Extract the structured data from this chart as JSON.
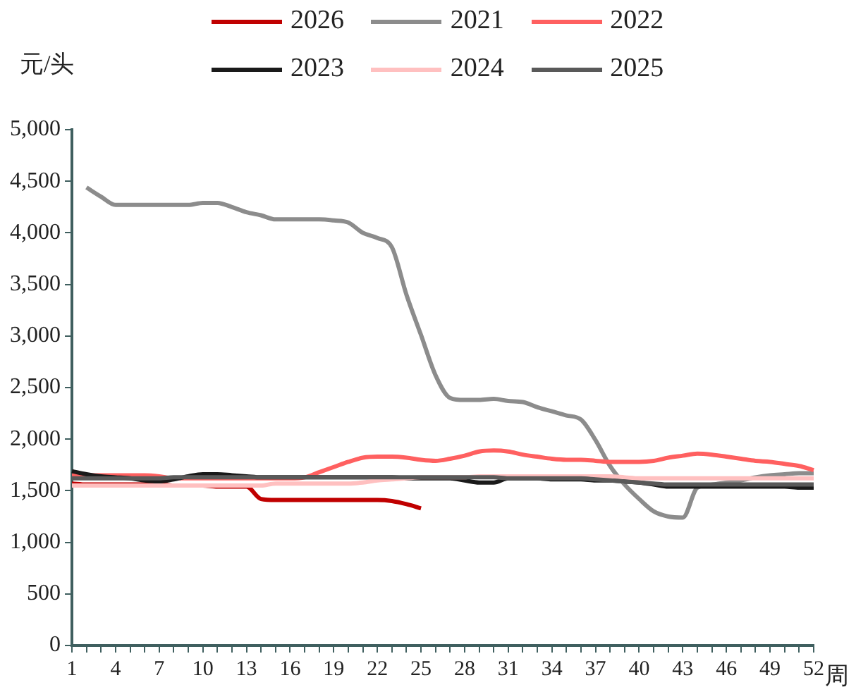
{
  "chart_data": {
    "type": "line",
    "ylabel": "元/头",
    "xlabel": "周",
    "categories": [
      "1",
      null,
      null,
      "4",
      null,
      null,
      "7",
      null,
      null,
      "10",
      null,
      null,
      "13",
      null,
      null,
      "16",
      null,
      null,
      "19",
      null,
      null,
      "22",
      null,
      null,
      "25",
      null,
      null,
      "28",
      null,
      null,
      "31",
      null,
      null,
      "34",
      null,
      null,
      "37",
      null,
      null,
      "40",
      null,
      null,
      "43",
      null,
      null,
      "46",
      null,
      null,
      "49",
      null,
      null,
      "52"
    ],
    "ylim": [
      0,
      5000
    ],
    "yticks": [
      {
        "value": 0,
        "label": "0"
      },
      {
        "value": 500,
        "label": "500"
      },
      {
        "value": 1000,
        "label": "1,000"
      },
      {
        "value": 1500,
        "label": "1,500"
      },
      {
        "value": 2000,
        "label": "2,000"
      },
      {
        "value": 2500,
        "label": "2,500"
      },
      {
        "value": 3000,
        "label": "3,000"
      },
      {
        "value": 3500,
        "label": "3,500"
      },
      {
        "value": 4000,
        "label": "4,000"
      },
      {
        "value": 4500,
        "label": "4,500"
      },
      {
        "value": 5000,
        "label": "5,000"
      }
    ],
    "grid": false,
    "legend": "top",
    "marker": "none",
    "line_style": "solid",
    "series": [
      {
        "name": "2026",
        "color": "#c00000",
        "values": [
          1570,
          1560,
          1560,
          1560,
          1560,
          1560,
          1560,
          1550,
          1550,
          1550,
          1540,
          1540,
          1540,
          1420,
          1410,
          1410,
          1410,
          1410,
          1410,
          1410,
          1410,
          1410,
          1400,
          1370,
          1330,
          null,
          null,
          null,
          null,
          null,
          null,
          null,
          null,
          null,
          null,
          null,
          null,
          null,
          null,
          null,
          null,
          null,
          null,
          null,
          null,
          null,
          null,
          null,
          null,
          null,
          null,
          null
        ]
      },
      {
        "name": "2021",
        "color": "#8c8c8c",
        "values": [
          null,
          4440,
          4350,
          4270,
          4270,
          4270,
          4270,
          4270,
          4270,
          4290,
          4290,
          4250,
          4200,
          4170,
          4130,
          4130,
          4130,
          4130,
          4120,
          4100,
          4000,
          3950,
          3860,
          3400,
          3010,
          2620,
          2400,
          2380,
          2380,
          2390,
          2370,
          2360,
          2310,
          2270,
          2230,
          2190,
          1990,
          1740,
          1560,
          1420,
          1300,
          1250,
          1240,
          1530,
          1560,
          1580,
          1600,
          1630,
          1650,
          1660,
          1670,
          1670
        ]
      },
      {
        "name": "2022",
        "color": "#ff6060",
        "values": [
          1650,
          1650,
          1650,
          1650,
          1650,
          1650,
          1640,
          1620,
          1620,
          1620,
          1620,
          1620,
          1620,
          1620,
          1620,
          1620,
          1630,
          1680,
          1730,
          1780,
          1820,
          1830,
          1830,
          1820,
          1800,
          1790,
          1810,
          1840,
          1880,
          1890,
          1880,
          1850,
          1830,
          1810,
          1800,
          1800,
          1790,
          1780,
          1780,
          1780,
          1790,
          1820,
          1840,
          1860,
          1850,
          1830,
          1810,
          1790,
          1780,
          1760,
          1740,
          1700
        ]
      },
      {
        "name": "2023",
        "color": "#1a1a1a",
        "values": [
          1690,
          1660,
          1640,
          1630,
          1620,
          1600,
          1590,
          1610,
          1640,
          1660,
          1660,
          1650,
          1640,
          1630,
          1630,
          1630,
          1630,
          1630,
          1630,
          1630,
          1630,
          1630,
          1630,
          1620,
          1620,
          1620,
          1620,
          1600,
          1580,
          1580,
          1620,
          1620,
          1620,
          1610,
          1610,
          1610,
          1600,
          1600,
          1590,
          1580,
          1560,
          1540,
          1540,
          1540,
          1540,
          1540,
          1540,
          1540,
          1540,
          1540,
          1530,
          1530
        ]
      },
      {
        "name": "2024",
        "color": "#ffc0c0",
        "values": [
          1550,
          1550,
          1550,
          1550,
          1550,
          1550,
          1550,
          1550,
          1550,
          1550,
          1550,
          1550,
          1550,
          1550,
          1570,
          1570,
          1570,
          1570,
          1570,
          1570,
          1580,
          1600,
          1610,
          1620,
          1630,
          1630,
          1630,
          1630,
          1640,
          1640,
          1640,
          1640,
          1640,
          1640,
          1640,
          1640,
          1640,
          1640,
          1630,
          1620,
          1620,
          1620,
          1620,
          1620,
          1620,
          1620,
          1620,
          1620,
          1620,
          1620,
          1620,
          1620
        ]
      },
      {
        "name": "2025",
        "color": "#595959",
        "values": [
          1620,
          1620,
          1620,
          1620,
          1620,
          1620,
          1620,
          1630,
          1630,
          1630,
          1630,
          1630,
          1630,
          1630,
          1630,
          1630,
          1630,
          1630,
          1630,
          1630,
          1630,
          1630,
          1630,
          1630,
          1630,
          1630,
          1630,
          1630,
          1630,
          1630,
          1620,
          1620,
          1620,
          1620,
          1620,
          1620,
          1610,
          1600,
          1590,
          1580,
          1570,
          1560,
          1560,
          1560,
          1560,
          1560,
          1560,
          1560,
          1560,
          1560,
          1560,
          1560
        ]
      }
    ]
  }
}
